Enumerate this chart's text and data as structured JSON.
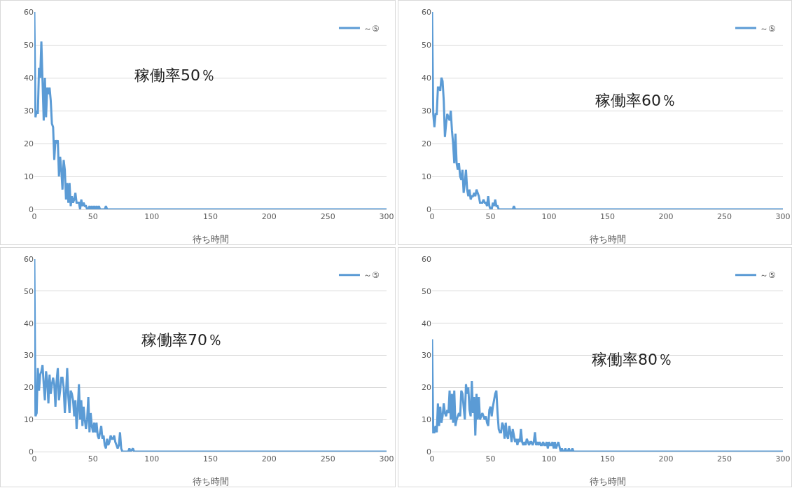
{
  "chart_data": [
    {
      "type": "line",
      "xlabel": "待ち時間",
      "annotations": [
        "稼働率50％"
      ],
      "grid": "y",
      "legend": "top right",
      "marker": "none",
      "line_style": "solid",
      "xlim": [
        0,
        300
      ],
      "ylim": [
        0,
        60
      ],
      "xticks": [
        0,
        50,
        100,
        150,
        200,
        250,
        300
      ],
      "yticks": [
        0,
        10,
        20,
        30,
        40,
        50,
        60
      ],
      "x": [
        0,
        1,
        2,
        3,
        4,
        5,
        6,
        7,
        8,
        9,
        10,
        11,
        12,
        13,
        14,
        15,
        16,
        17,
        18,
        19,
        20,
        21,
        22,
        23,
        24,
        25,
        26,
        27,
        28,
        29,
        30,
        31,
        32,
        33,
        34,
        35,
        36,
        37,
        38,
        39,
        40,
        41,
        42,
        43,
        44,
        45,
        46,
        47,
        48,
        49,
        50,
        51,
        52,
        53,
        54,
        55,
        56,
        60,
        61,
        62,
        300
      ],
      "series": [
        {
          "name": "～⑤",
          "color": "#5b9bd5",
          "values": [
            60,
            28,
            30,
            29,
            43,
            40,
            51,
            39,
            27,
            40,
            28,
            37,
            35,
            37,
            33,
            26,
            25,
            15,
            21,
            20,
            21,
            10,
            16,
            12,
            6,
            15,
            12,
            3,
            8,
            2,
            8,
            1,
            4,
            2,
            3,
            5,
            2,
            2,
            2,
            0,
            3,
            1,
            2,
            1,
            1,
            0,
            0,
            1,
            0,
            1,
            0,
            1,
            0,
            1,
            0,
            1,
            0,
            0,
            1,
            0,
            0
          ]
        }
      ]
    },
    {
      "type": "line",
      "xlabel": "待ち時間",
      "annotations": [
        "稼働率60％"
      ],
      "grid": "y",
      "legend": "top right",
      "marker": "none",
      "line_style": "solid",
      "xlim": [
        0,
        300
      ],
      "ylim": [
        0,
        60
      ],
      "xticks": [
        0,
        50,
        100,
        150,
        200,
        250,
        300
      ],
      "yticks": [
        0,
        10,
        20,
        30,
        40,
        50,
        60
      ],
      "x": [
        0,
        1,
        2,
        3,
        4,
        5,
        6,
        7,
        8,
        9,
        10,
        11,
        12,
        13,
        14,
        15,
        16,
        17,
        18,
        19,
        20,
        21,
        22,
        23,
        24,
        25,
        26,
        27,
        28,
        29,
        30,
        31,
        32,
        33,
        34,
        35,
        36,
        37,
        38,
        39,
        40,
        41,
        42,
        43,
        44,
        45,
        46,
        47,
        48,
        49,
        50,
        51,
        52,
        53,
        54,
        55,
        56,
        57,
        69,
        70,
        71,
        300
      ],
      "series": [
        {
          "name": "～⑤",
          "color": "#5b9bd5",
          "values": [
            60,
            29,
            25,
            29,
            29,
            37,
            37,
            36,
            40,
            39,
            33,
            22,
            26,
            29,
            28,
            27,
            30,
            24,
            20,
            14,
            23,
            14,
            12,
            14,
            10,
            9,
            12,
            5,
            8,
            12,
            6,
            4,
            6,
            3,
            4,
            4,
            5,
            4,
            6,
            5,
            4,
            2,
            2,
            2,
            3,
            2,
            2,
            1,
            4,
            1,
            0,
            0,
            2,
            1,
            3,
            1,
            1,
            0,
            0,
            1,
            0,
            0
          ]
        }
      ]
    },
    {
      "type": "line",
      "xlabel": "待ち時間",
      "annotations": [
        "稼働率70％"
      ],
      "grid": "y",
      "legend": "top right",
      "marker": "none",
      "line_style": "solid",
      "xlim": [
        0,
        300
      ],
      "ylim": [
        0,
        60
      ],
      "xticks": [
        0,
        50,
        100,
        150,
        200,
        250,
        300
      ],
      "yticks": [
        0,
        10,
        20,
        30,
        40,
        50,
        60
      ],
      "x": [
        0,
        1,
        2,
        3,
        4,
        5,
        6,
        7,
        8,
        9,
        10,
        11,
        12,
        13,
        14,
        15,
        16,
        17,
        18,
        19,
        20,
        21,
        22,
        23,
        24,
        25,
        26,
        27,
        28,
        29,
        30,
        31,
        32,
        33,
        34,
        35,
        36,
        37,
        38,
        39,
        40,
        41,
        42,
        43,
        44,
        45,
        46,
        47,
        48,
        49,
        50,
        51,
        52,
        53,
        54,
        55,
        56,
        57,
        58,
        59,
        60,
        61,
        62,
        63,
        64,
        65,
        66,
        67,
        68,
        69,
        70,
        71,
        72,
        73,
        74,
        75,
        80,
        81,
        82,
        84,
        85,
        300
      ],
      "series": [
        {
          "name": "～⑤",
          "color": "#5b9bd5",
          "values": [
            60,
            11,
            12,
            26,
            19,
            24,
            25,
            27,
            21,
            16,
            25,
            22,
            15,
            24,
            18,
            21,
            23,
            21,
            14,
            22,
            26,
            16,
            19,
            23,
            23,
            20,
            12,
            18,
            26,
            17,
            12,
            19,
            18,
            16,
            11,
            16,
            7,
            13,
            21,
            10,
            16,
            8,
            14,
            10,
            7,
            10,
            17,
            6,
            12,
            8,
            6,
            9,
            6,
            9,
            5,
            4,
            6,
            8,
            4,
            5,
            2,
            1,
            4,
            2,
            3,
            5,
            4,
            4,
            5,
            3,
            2,
            1,
            2,
            6,
            1,
            0,
            0,
            1,
            0,
            1,
            0,
            0
          ]
        }
      ]
    },
    {
      "type": "line",
      "xlabel": "待ち時間",
      "annotations": [
        "稼働率80％"
      ],
      "grid": "y",
      "legend": "top right",
      "marker": "none",
      "line_style": "solid",
      "xlim": [
        0,
        300
      ],
      "ylim": [
        0,
        60
      ],
      "xticks": [
        0,
        50,
        100,
        150,
        200,
        250,
        300
      ],
      "yticks": [
        0,
        10,
        20,
        30,
        40,
        50,
        60
      ],
      "x": [
        0,
        1,
        2,
        3,
        4,
        5,
        6,
        7,
        8,
        9,
        10,
        11,
        12,
        13,
        14,
        15,
        16,
        17,
        18,
        19,
        20,
        21,
        22,
        23,
        24,
        25,
        26,
        27,
        28,
        29,
        30,
        31,
        32,
        33,
        34,
        35,
        36,
        37,
        38,
        39,
        40,
        41,
        42,
        43,
        44,
        45,
        46,
        47,
        48,
        49,
        50,
        51,
        52,
        53,
        54,
        55,
        56,
        57,
        58,
        59,
        60,
        61,
        62,
        63,
        64,
        65,
        66,
        67,
        68,
        69,
        70,
        71,
        72,
        73,
        74,
        75,
        76,
        77,
        78,
        79,
        80,
        81,
        82,
        83,
        84,
        85,
        86,
        87,
        88,
        89,
        90,
        91,
        92,
        93,
        94,
        95,
        96,
        97,
        98,
        99,
        100,
        101,
        102,
        103,
        104,
        105,
        106,
        107,
        108,
        110,
        111,
        112,
        113,
        114,
        115,
        116,
        117,
        118,
        119,
        120,
        121,
        300
      ],
      "series": [
        {
          "name": "～⑤",
          "color": "#5b9bd5",
          "values": [
            35,
            6,
            6,
            8,
            6,
            15,
            8,
            14,
            9,
            11,
            15,
            12,
            11,
            13,
            12,
            19,
            10,
            18,
            9,
            19,
            8,
            10,
            11,
            12,
            11,
            19,
            18,
            14,
            10,
            21,
            18,
            20,
            13,
            11,
            22,
            12,
            17,
            5,
            18,
            10,
            17,
            10,
            11,
            12,
            11,
            10,
            11,
            9,
            8,
            13,
            14,
            11,
            14,
            16,
            18,
            19,
            12,
            7,
            6,
            6,
            9,
            8,
            4,
            9,
            5,
            4,
            8,
            6,
            3,
            7,
            5,
            3,
            4,
            2,
            4,
            3,
            7,
            3,
            2,
            3,
            2,
            4,
            3,
            2,
            3,
            3,
            2,
            3,
            6,
            2,
            3,
            2,
            3,
            2,
            2,
            3,
            2,
            2,
            3,
            1,
            3,
            2,
            2,
            3,
            1,
            3,
            1,
            2,
            3,
            0,
            1,
            0,
            0,
            1,
            0,
            0,
            1,
            0,
            0,
            1,
            0,
            0
          ]
        }
      ]
    }
  ]
}
